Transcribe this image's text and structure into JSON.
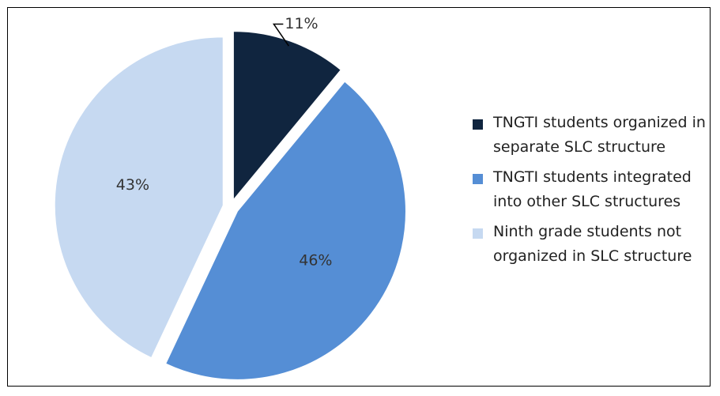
{
  "chart_data": {
    "type": "pie",
    "categories": [
      "TNGTI students organized in separate SLC structure",
      "TNGTI students integrated into other SLC structures",
      "Ninth grade students not organized in SLC structure"
    ],
    "values": [
      11,
      46,
      43
    ],
    "value_labels": [
      "11%",
      "46%",
      "43%"
    ],
    "colors": [
      "#10253f",
      "#558ed5",
      "#c6d9f1"
    ]
  }
}
